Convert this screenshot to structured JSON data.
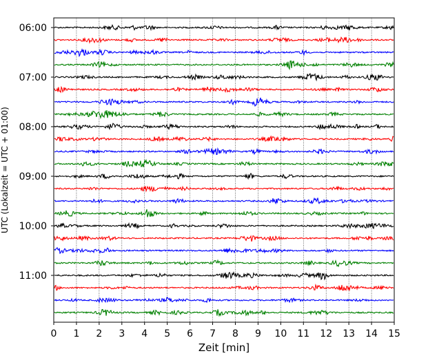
{
  "chart_data": {
    "type": "line",
    "title": "",
    "xlabel": "Zeit  [min]",
    "ylabel": "UTC (Lokalzeit = UTC + 01:00)",
    "xlim": [
      0,
      15
    ],
    "x_ticks": [
      "0",
      "1",
      "2",
      "3",
      "4",
      "5",
      "6",
      "7",
      "8",
      "9",
      "10",
      "11",
      "12",
      "13",
      "14",
      "15"
    ],
    "y_ticks": [
      {
        "label": "06:00",
        "trace": 0
      },
      {
        "label": "07:00",
        "trace": 4
      },
      {
        "label": "08:00",
        "trace": 8
      },
      {
        "label": "09:00",
        "trace": 12
      },
      {
        "label": "10:00",
        "trace": 16
      },
      {
        "label": "11:00",
        "trace": 20
      }
    ],
    "grid": "vertical dotted at each minute",
    "trace_count": 24,
    "trace_interval_minutes": 15,
    "color_cycle": [
      "#000000",
      "#ff0000",
      "#0000ff",
      "#008000"
    ]
  }
}
